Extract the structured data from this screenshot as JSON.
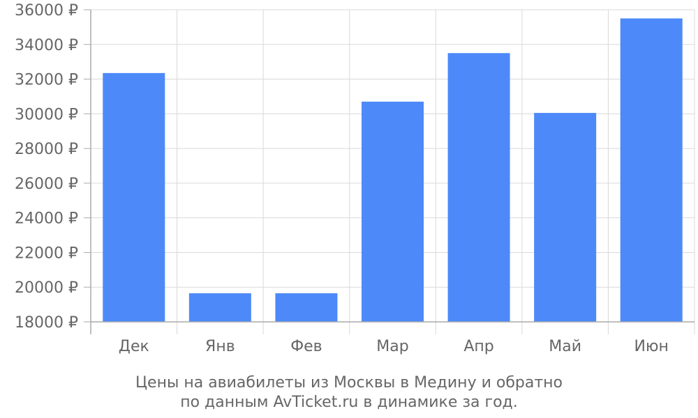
{
  "chart_data": {
    "type": "bar",
    "categories": [
      "Дек",
      "Янв",
      "Фев",
      "Мар",
      "Апр",
      "Май",
      "Июн"
    ],
    "values": [
      32350,
      19650,
      19650,
      30700,
      33500,
      30050,
      35500
    ],
    "ylim": [
      18000,
      36000
    ],
    "yticks": [
      18000,
      20000,
      22000,
      24000,
      26000,
      28000,
      30000,
      32000,
      34000,
      36000
    ],
    "currency_suffix": " ₽",
    "grid": true,
    "bar_color": "#4d89f9",
    "grid_color": "#d9d9d9",
    "axis_color": "#aaaaaa",
    "text_color": "#666666",
    "caption": [
      "Цены на авиабилеты из Москвы в Медину и обратно",
      "по данным AvTicket.ru в динамике за год."
    ]
  }
}
